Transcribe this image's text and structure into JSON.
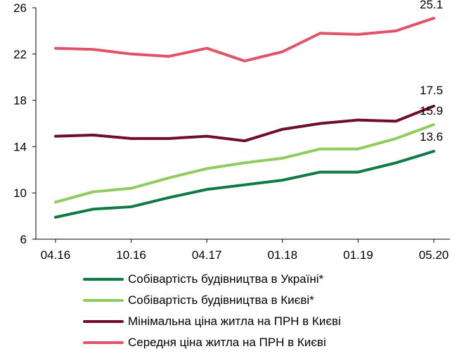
{
  "chart_data": {
    "type": "line",
    "title": "",
    "xlabel": "",
    "ylabel": "",
    "ylim": [
      6,
      26
    ],
    "y_ticks": [
      6,
      10,
      14,
      18,
      22,
      26
    ],
    "x_tick_labels": [
      "04.16",
      "10.16",
      "04.17",
      "01.18",
      "01.19",
      "05.20"
    ],
    "grid": false,
    "legend_position": "bottom",
    "series": [
      {
        "name": "Собівартість будівництва в Україні*",
        "color": "#0e7a44",
        "values": [
          7.9,
          8.6,
          8.8,
          9.6,
          10.3,
          10.7,
          11.1,
          11.8,
          11.8,
          12.6,
          13.6
        ],
        "end_label": "13.6"
      },
      {
        "name": "Собівартість будівництва в Києві*",
        "color": "#8fcb5e",
        "values": [
          9.2,
          10.1,
          10.4,
          11.3,
          12.1,
          12.6,
          13.0,
          13.8,
          13.8,
          14.7,
          15.9
        ],
        "end_label": "15.9"
      },
      {
        "name": "Мінімальна ціна житла на ПРН в Києві",
        "color": "#6f0d2e",
        "values": [
          14.9,
          15.0,
          14.7,
          14.7,
          14.9,
          14.5,
          15.5,
          16.0,
          16.3,
          16.2,
          17.5
        ],
        "end_label": "17.5"
      },
      {
        "name": "Середня ціна житла на ПРН в Києві",
        "color": "#e05468",
        "values": [
          22.5,
          22.4,
          22.0,
          21.8,
          22.5,
          21.4,
          22.2,
          23.8,
          23.7,
          24.0,
          25.1
        ],
        "end_label": "25.1"
      }
    ]
  }
}
